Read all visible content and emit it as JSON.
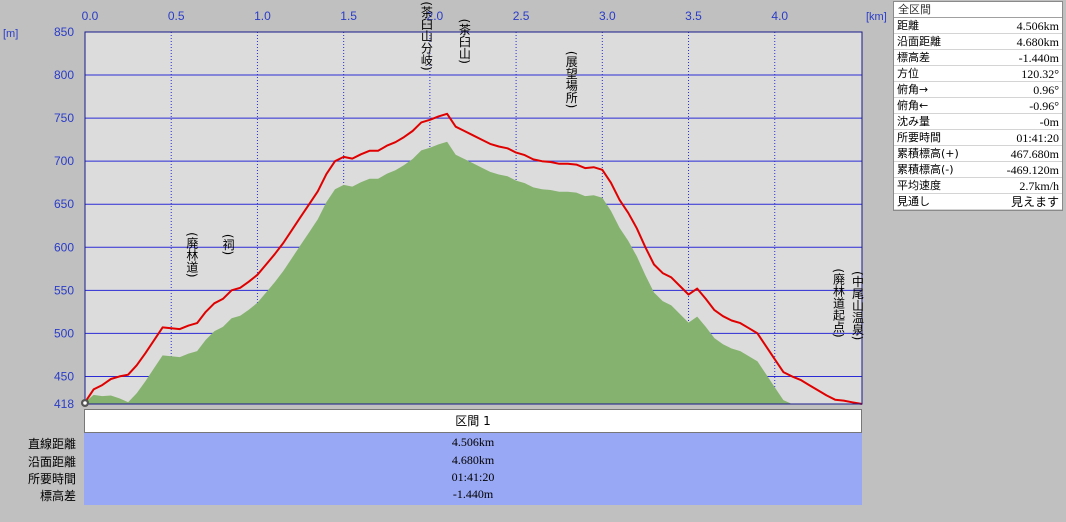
{
  "units": {
    "x_unit": "[km]",
    "y_unit": "[m]"
  },
  "colors": {
    "plot_bg": "#dcdcdc",
    "grid": "#2b2bd6",
    "terrain": "#86b270",
    "track": "#e00000",
    "axis_text": "#2a3cc8"
  },
  "summary": {
    "title": "全区間",
    "rows": [
      {
        "label": "距離",
        "value": "4.506km"
      },
      {
        "label": "沿面距離",
        "value": "4.680km"
      },
      {
        "label": "標高差",
        "value": "-1.440m"
      },
      {
        "label": "方位",
        "value": "120.32°"
      },
      {
        "label": "俯角→",
        "value": "0.96°"
      },
      {
        "label": "俯角←",
        "value": "-0.96°"
      },
      {
        "label": "沈み量",
        "value": "-0m"
      },
      {
        "label": "所要時間",
        "value": "01:41:20"
      },
      {
        "label": "累積標高(+)",
        "value": "467.680m"
      },
      {
        "label": "累積標高(-)",
        "value": "-469.120m"
      },
      {
        "label": "平均速度",
        "value": "2.7km/h"
      },
      {
        "label": "見通し",
        "value": "見えます"
      }
    ]
  },
  "section": {
    "header": "区間 1",
    "rows": [
      {
        "label": "直線距離",
        "value": "4.506km"
      },
      {
        "label": "沿面距離",
        "value": "4.680km"
      },
      {
        "label": "所要時間",
        "value": "01:41:20"
      },
      {
        "label": "標高差",
        "value": "-1.440m"
      }
    ]
  },
  "chart_data": {
    "type": "area",
    "xlim": [
      0,
      4.506
    ],
    "ylim": [
      418,
      850
    ],
    "x_ticks": [
      "0.0",
      "0.5",
      "1.0",
      "1.5",
      "2.0",
      "2.5",
      "3.0",
      "3.5",
      "4.0"
    ],
    "y_ticks": [
      "850",
      "800",
      "750",
      "700",
      "650",
      "600",
      "550",
      "500",
      "450",
      "418"
    ],
    "grid": true,
    "series": [
      {
        "type": "line",
        "x": [
          0.0,
          0.05,
          0.1,
          0.15,
          0.2,
          0.25,
          0.3,
          0.35,
          0.4,
          0.45,
          0.5,
          0.55,
          0.6,
          0.65,
          0.7,
          0.75,
          0.8,
          0.85,
          0.9,
          0.95,
          1.0,
          1.05,
          1.1,
          1.15,
          1.2,
          1.25,
          1.3,
          1.35,
          1.4,
          1.45,
          1.5,
          1.55,
          1.6,
          1.65,
          1.7,
          1.75,
          1.8,
          1.85,
          1.9,
          1.95,
          2.0,
          2.05,
          2.1,
          2.15,
          2.2,
          2.25,
          2.3,
          2.35,
          2.4,
          2.45,
          2.5,
          2.55,
          2.6,
          2.65,
          2.7,
          2.75,
          2.8,
          2.85,
          2.9,
          2.95,
          3.0,
          3.05,
          3.1,
          3.15,
          3.2,
          3.25,
          3.3,
          3.35,
          3.4,
          3.45,
          3.5,
          3.55,
          3.6,
          3.65,
          3.7,
          3.75,
          3.8,
          3.85,
          3.9,
          3.95,
          4.0,
          4.05,
          4.1,
          4.15,
          4.2,
          4.25,
          4.3,
          4.35,
          4.4,
          4.45,
          4.506
        ],
        "y": [
          420,
          435,
          440,
          447,
          450,
          452,
          463,
          477,
          492,
          507,
          506,
          505,
          509,
          512,
          525,
          535,
          540,
          550,
          553,
          560,
          568,
          580,
          592,
          605,
          620,
          635,
          650,
          665,
          685,
          700,
          705,
          703,
          708,
          712,
          712,
          718,
          722,
          728,
          735,
          745,
          748,
          752,
          755,
          740,
          735,
          730,
          725,
          720,
          717,
          715,
          710,
          707,
          702,
          700,
          699,
          697,
          697,
          696,
          692,
          693,
          690,
          675,
          655,
          640,
          622,
          600,
          580,
          570,
          565,
          555,
          545,
          552,
          540,
          527,
          520,
          515,
          512,
          506,
          500,
          485,
          470,
          455,
          450,
          446,
          440,
          434,
          428,
          423,
          422,
          420,
          418
        ]
      }
    ]
  },
  "waypoints": [
    {
      "x": 0.62,
      "y": 507,
      "label": "(廃林道)"
    },
    {
      "x": 0.83,
      "y": 548,
      "label": "(祠)"
    },
    {
      "x": 1.98,
      "y": 748,
      "label": "(茶臼山分岐)"
    },
    {
      "x": 2.2,
      "y": 755,
      "label": "(茶臼山)"
    },
    {
      "x": 2.82,
      "y": 696,
      "label": "(展望場所)"
    },
    {
      "x": 4.37,
      "y": 422,
      "label": "(廃林道起点)"
    },
    {
      "x": 4.48,
      "y": 419,
      "label": "(中尾山温泉)"
    }
  ]
}
